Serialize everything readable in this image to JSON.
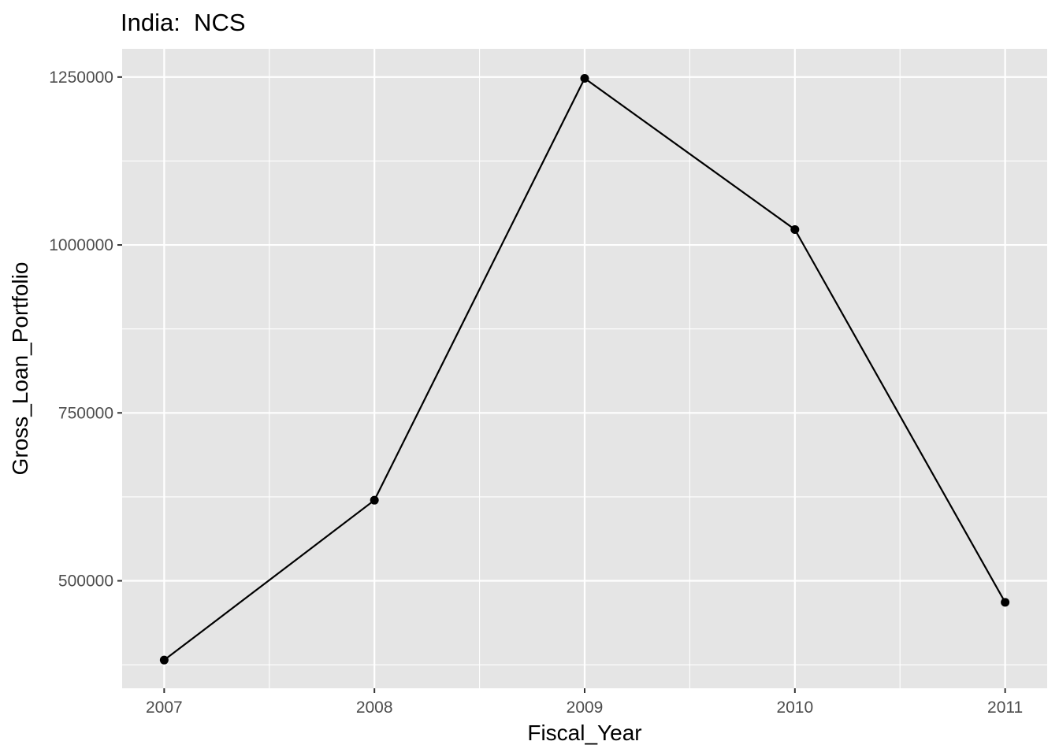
{
  "chart_data": {
    "type": "line",
    "title": "India:  NCS",
    "xlabel": "Fiscal_Year",
    "ylabel": "Gross_Loan_Portfolio",
    "x": [
      2007,
      2008,
      2009,
      2010,
      2011
    ],
    "series": [
      {
        "values": [
          382000,
          620000,
          1248000,
          1023000,
          468000
        ]
      }
    ],
    "xticks": [
      "2007",
      "2008",
      "2009",
      "2010",
      "2011"
    ],
    "yticks": [
      500000,
      750000,
      1000000,
      1250000
    ],
    "ytick_labels": [
      "500000",
      "750000",
      "1000000",
      "1250000"
    ],
    "xlim": [
      2006.8,
      2011.2
    ],
    "ylim": [
      340000,
      1292000
    ],
    "grid": true,
    "colors": {
      "panel": "#e5e5e5",
      "grid": "#ffffff",
      "line": "#000000",
      "tick_text": "#4d4d4d"
    }
  }
}
